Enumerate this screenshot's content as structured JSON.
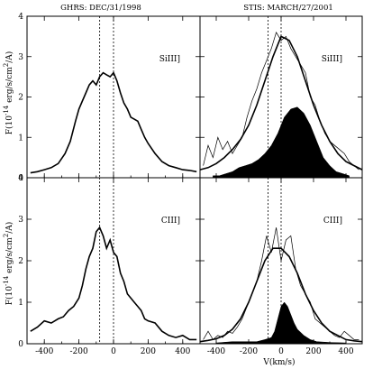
{
  "chart_data": {
    "type": "line",
    "column_titles": [
      "GHRS: DEC/31/1998",
      "STIS: MARCH/27/2001"
    ],
    "xlabel": "V(km/s)",
    "ylabel_parts": {
      "prefix": "F(10",
      "exponent1": "-14",
      "middle": " erg/s/cm",
      "exponent2": "2",
      "suffix": "/A)"
    },
    "xlim": [
      -500,
      500
    ],
    "ylim": [
      0,
      4
    ],
    "x_ticks": [
      "-400",
      "-200",
      "0",
      "200",
      "400"
    ],
    "y_ticks": [
      "0",
      "1",
      "2",
      "3",
      "4"
    ],
    "panels": [
      {
        "id": "ghrs-siii",
        "label": "SiIII]",
        "dashed_lines": [
          -80,
          0
        ],
        "observed": {
          "x": [
            -480,
            -440,
            -400,
            -360,
            -320,
            -280,
            -250,
            -220,
            -200,
            -180,
            -160,
            -140,
            -120,
            -100,
            -80,
            -60,
            -40,
            -20,
            0,
            20,
            40,
            60,
            80,
            100,
            120,
            140,
            160,
            180,
            200,
            240,
            280,
            320,
            360,
            400,
            440,
            480
          ],
          "y": [
            0.12,
            0.15,
            0.2,
            0.25,
            0.35,
            0.6,
            0.9,
            1.4,
            1.7,
            1.9,
            2.1,
            2.3,
            2.4,
            2.3,
            2.5,
            2.6,
            2.55,
            2.5,
            2.6,
            2.4,
            2.1,
            1.85,
            1.7,
            1.5,
            1.45,
            1.4,
            1.2,
            1.0,
            0.85,
            0.6,
            0.4,
            0.3,
            0.25,
            0.2,
            0.18,
            0.15
          ]
        }
      },
      {
        "id": "stis-siii",
        "label": "SiIII]",
        "dashed_lines": [
          -80,
          0
        ],
        "observed": {
          "x": [
            -480,
            -450,
            -420,
            -390,
            -360,
            -330,
            -300,
            -270,
            -240,
            -210,
            -180,
            -150,
            -120,
            -90,
            -60,
            -30,
            0,
            30,
            60,
            90,
            120,
            150,
            180,
            210,
            240,
            270,
            300,
            330,
            360,
            390,
            420,
            450,
            480
          ],
          "y": [
            0.3,
            0.8,
            0.5,
            1.0,
            0.7,
            0.9,
            0.6,
            0.8,
            1.0,
            1.5,
            1.9,
            2.2,
            2.6,
            2.9,
            3.2,
            3.6,
            3.4,
            3.5,
            3.2,
            3.0,
            2.8,
            2.6,
            2.0,
            1.8,
            1.4,
            1.1,
            0.9,
            0.8,
            0.7,
            0.6,
            0.4,
            0.3,
            0.2
          ]
        },
        "fit": {
          "x": [
            -500,
            -450,
            -400,
            -350,
            -300,
            -250,
            -200,
            -150,
            -100,
            -50,
            0,
            50,
            100,
            150,
            200,
            250,
            300,
            350,
            400,
            450,
            500
          ],
          "y": [
            0.2,
            0.25,
            0.35,
            0.5,
            0.7,
            0.95,
            1.3,
            1.8,
            2.4,
            3.0,
            3.5,
            3.4,
            3.0,
            2.4,
            1.8,
            1.3,
            0.9,
            0.6,
            0.4,
            0.3,
            0.2
          ]
        },
        "residual": {
          "x": [
            -420,
            -380,
            -340,
            -300,
            -260,
            -220,
            -180,
            -140,
            -100,
            -60,
            -20,
            0,
            20,
            60,
            100,
            140,
            180,
            220,
            260,
            300,
            340,
            380,
            420
          ],
          "y": [
            0.05,
            0.05,
            0.1,
            0.15,
            0.25,
            0.3,
            0.35,
            0.45,
            0.6,
            0.8,
            1.1,
            1.3,
            1.5,
            1.7,
            1.75,
            1.6,
            1.3,
            0.9,
            0.5,
            0.3,
            0.15,
            0.1,
            0.05
          ]
        }
      },
      {
        "id": "ghrs-ciii",
        "label": "CIII]",
        "dashed_lines": [
          -80,
          0
        ],
        "observed": {
          "x": [
            -480,
            -440,
            -400,
            -360,
            -320,
            -290,
            -260,
            -230,
            -200,
            -180,
            -160,
            -140,
            -120,
            -100,
            -80,
            -60,
            -40,
            -20,
            0,
            20,
            40,
            60,
            80,
            100,
            120,
            140,
            160,
            180,
            200,
            240,
            280,
            320,
            360,
            400,
            440,
            480
          ],
          "y": [
            0.3,
            0.4,
            0.55,
            0.5,
            0.6,
            0.65,
            0.8,
            0.9,
            1.1,
            1.4,
            1.8,
            2.1,
            2.3,
            2.7,
            2.8,
            2.6,
            2.3,
            2.5,
            2.2,
            2.1,
            1.7,
            1.5,
            1.2,
            1.1,
            1.0,
            0.9,
            0.8,
            0.6,
            0.55,
            0.5,
            0.3,
            0.2,
            0.15,
            0.2,
            0.1,
            0.1
          ]
        }
      },
      {
        "id": "stis-ciii",
        "label": "CIII]",
        "dashed_lines": [
          -80,
          0
        ],
        "observed": {
          "x": [
            -480,
            -450,
            -420,
            -390,
            -360,
            -330,
            -300,
            -270,
            -240,
            -210,
            -180,
            -150,
            -120,
            -90,
            -60,
            -30,
            0,
            30,
            60,
            90,
            120,
            150,
            180,
            210,
            240,
            270,
            300,
            330,
            360,
            390,
            420,
            450,
            480
          ],
          "y": [
            0.1,
            0.3,
            0.1,
            0.2,
            0.15,
            0.3,
            0.25,
            0.4,
            0.6,
            0.9,
            1.2,
            1.5,
            2.0,
            2.6,
            2.2,
            2.8,
            2.0,
            2.5,
            2.6,
            1.8,
            1.4,
            1.2,
            1.0,
            0.6,
            0.5,
            0.4,
            0.3,
            0.2,
            0.15,
            0.3,
            0.2,
            0.1,
            0.1
          ]
        },
        "fit": {
          "x": [
            -500,
            -450,
            -400,
            -350,
            -300,
            -250,
            -200,
            -150,
            -100,
            -50,
            0,
            50,
            100,
            150,
            200,
            250,
            300,
            350,
            400,
            450,
            500
          ],
          "y": [
            0.05,
            0.08,
            0.12,
            0.2,
            0.35,
            0.6,
            1.0,
            1.5,
            2.0,
            2.3,
            2.3,
            2.1,
            1.7,
            1.2,
            0.8,
            0.5,
            0.3,
            0.2,
            0.1,
            0.07,
            0.05
          ]
        },
        "residual": {
          "x": [
            -400,
            -300,
            -200,
            -150,
            -100,
            -60,
            -40,
            -20,
            0,
            20,
            40,
            60,
            80,
            100,
            140,
            180,
            220,
            300,
            400
          ],
          "y": [
            0.02,
            0.05,
            0.05,
            0.05,
            0.1,
            0.15,
            0.3,
            0.6,
            0.9,
            1.0,
            0.9,
            0.7,
            0.5,
            0.35,
            0.2,
            0.1,
            0.05,
            0.03,
            0.02
          ]
        }
      }
    ]
  }
}
